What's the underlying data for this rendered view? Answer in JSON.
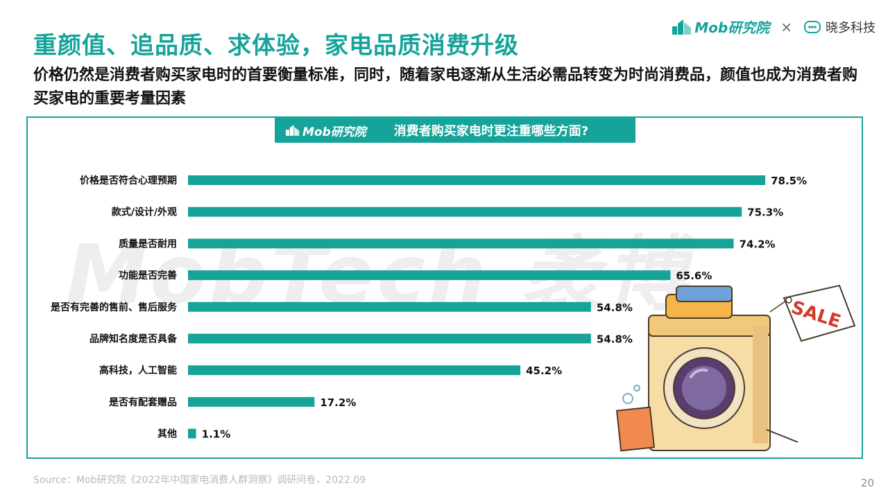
{
  "header": {
    "title": "重颜值、追品质、求体验，家电品质消费升级",
    "subtitle": "价格仍然是消费者购买家电时的首要衡量标准，同时，随着家电逐渐从生活必需品转变为时尚消费品，颜值也成为消费者购买家电的重要考量因素"
  },
  "brand": {
    "mob_label": "Mob研究院",
    "times": "×",
    "partner_label": "晓多科技"
  },
  "panel": {
    "logo_label": "Mob研究院",
    "title": "消费者购买家电时更注重哪些方面?"
  },
  "watermark": "MobTech 袤博",
  "chart_data": {
    "type": "bar",
    "orientation": "horizontal",
    "categories": [
      "价格是否符合心理预期",
      "款式/设计/外观",
      "质量是否耐用",
      "功能是否完善",
      "是否有完善的售前、售后服务",
      "品牌知名度是否具备",
      "高科技，人工智能",
      "是否有配套赠品",
      "其他"
    ],
    "values": [
      78.5,
      75.3,
      74.2,
      65.6,
      54.8,
      54.8,
      45.2,
      17.2,
      1.1
    ],
    "labels": [
      "78.5%",
      "75.3%",
      "74.2%",
      "65.6%",
      "54.8%",
      "54.8%",
      "45.2%",
      "17.2%",
      "1.1%"
    ],
    "title": "消费者购买家电时更注重哪些方面?",
    "xlabel": "",
    "ylabel": "",
    "xlim": [
      0,
      100
    ],
    "bar_color": "#15a39a"
  },
  "source": "Source：Mob研究院《2022年中国家电消费人群洞察》调研问卷，2022.09",
  "page_number": "20",
  "colors": {
    "accent": "#15a39a",
    "text": "#111111"
  }
}
